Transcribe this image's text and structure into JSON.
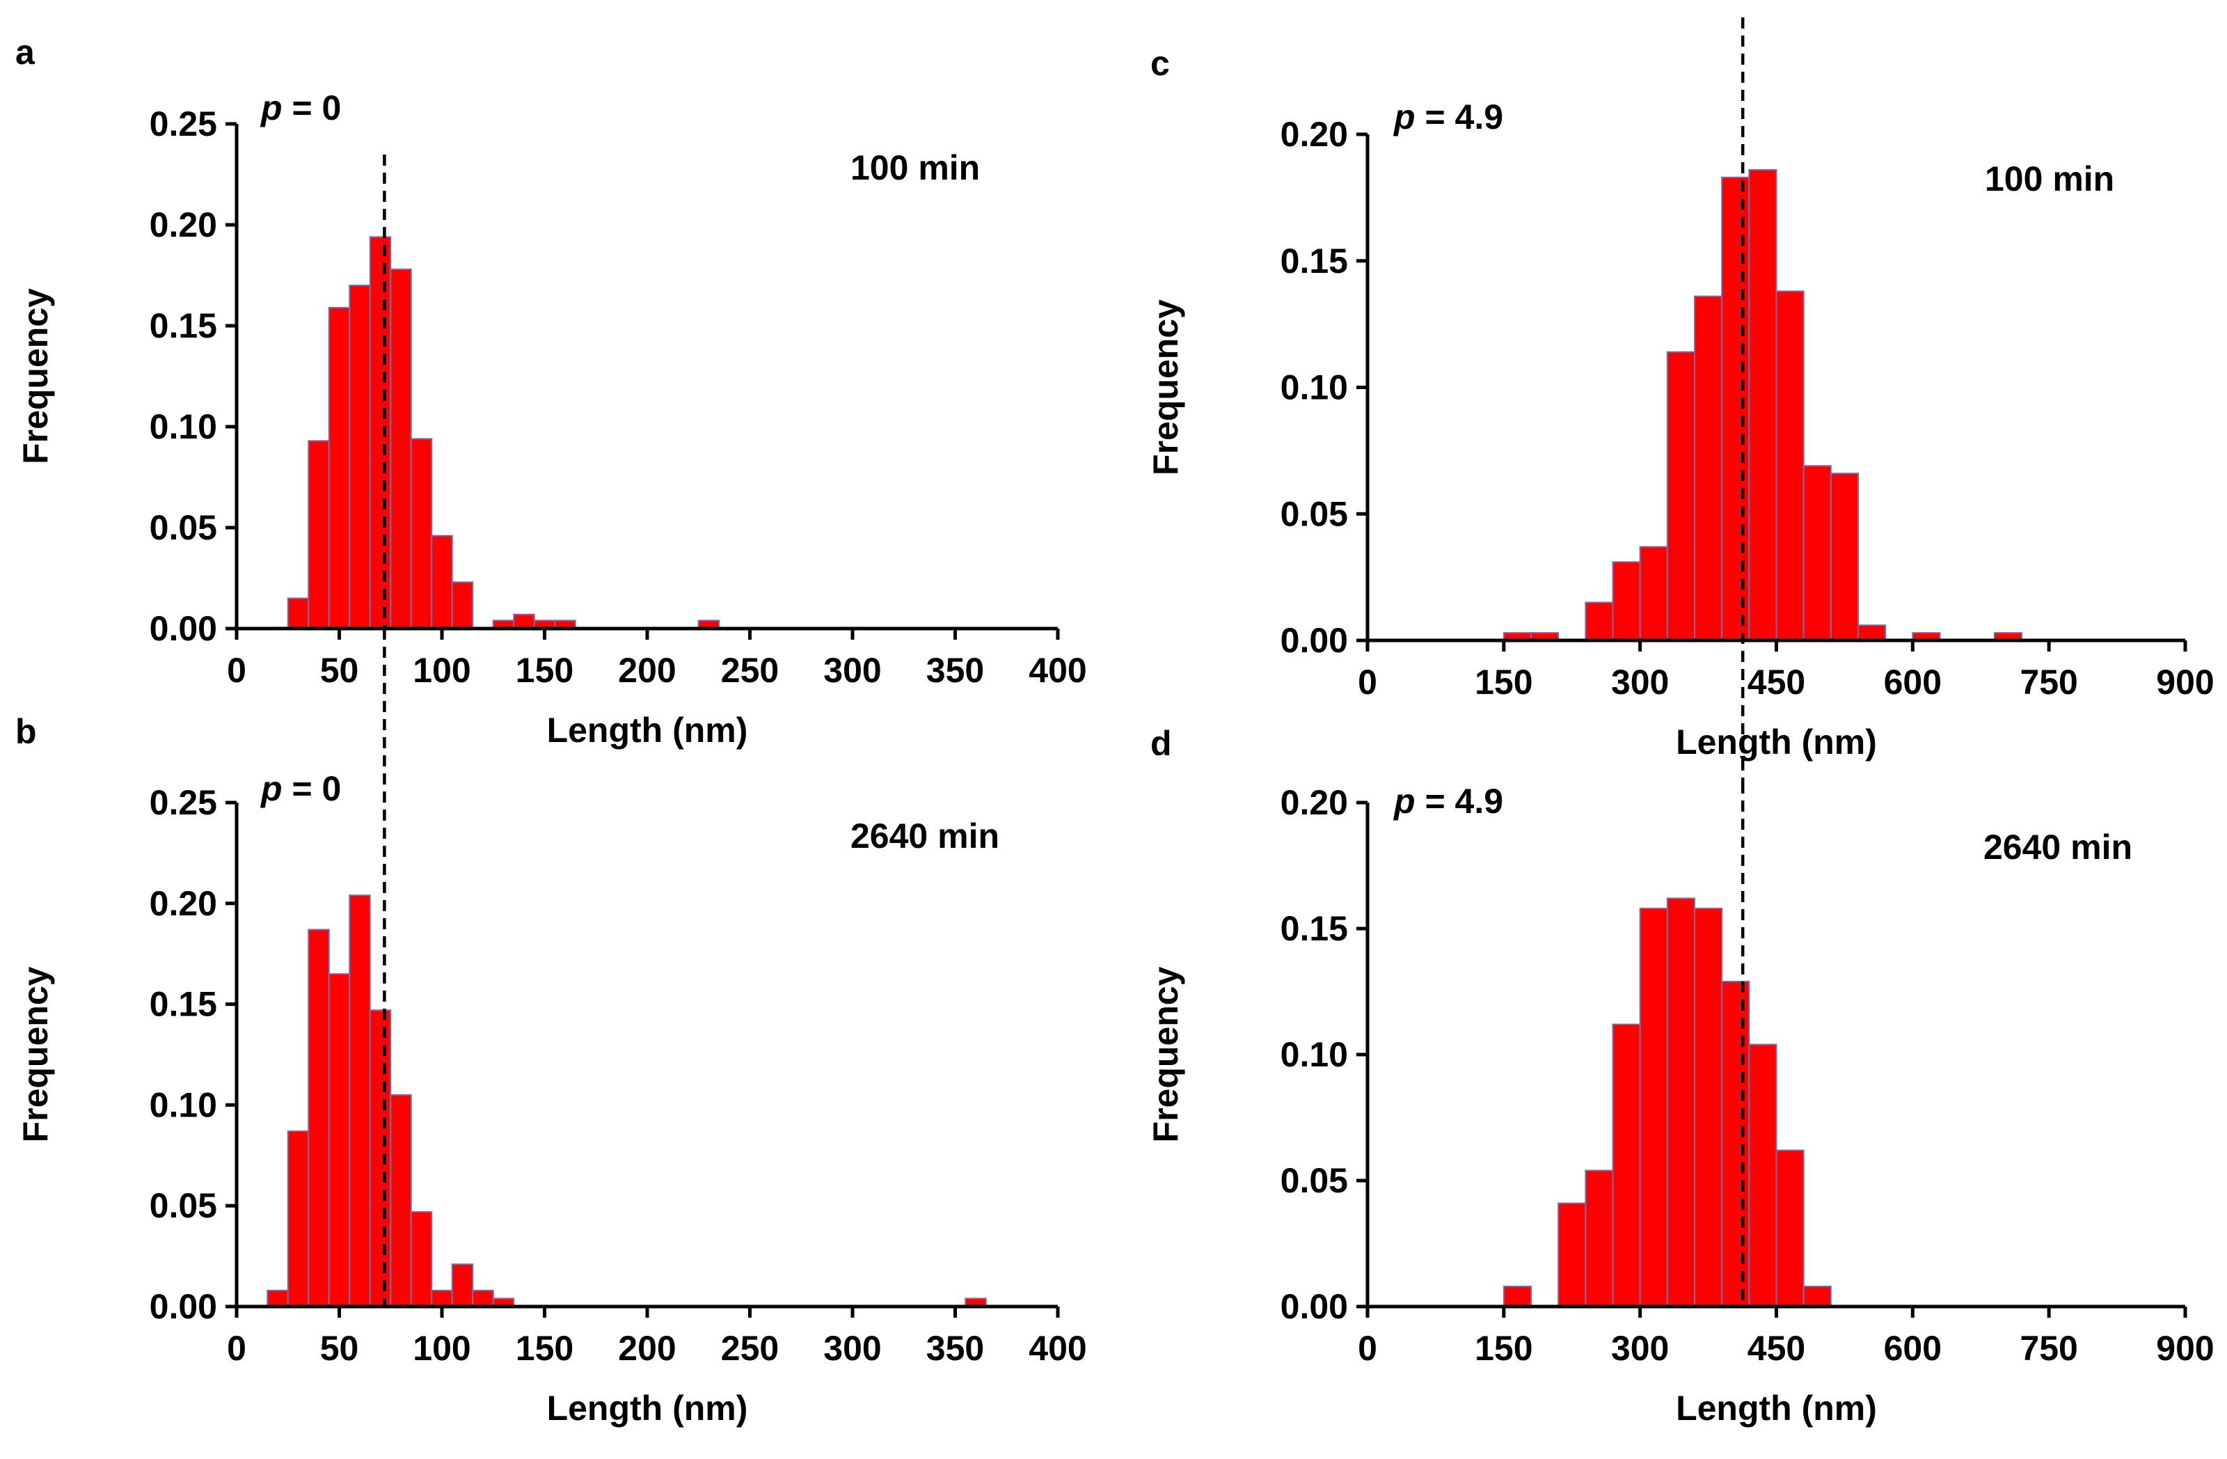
{
  "chart_data": [
    {
      "id": "a",
      "type": "bar",
      "panel_label": "a",
      "xlabel": "Length (nm)",
      "ylabel": "Frequency",
      "xlim": [
        0,
        400
      ],
      "ylim": [
        0,
        0.25
      ],
      "xticks": [
        0,
        50,
        100,
        150,
        200,
        250,
        300,
        350,
        400
      ],
      "xtick_labels": [
        "0",
        "50",
        "100",
        "150",
        "200",
        "250",
        "300",
        "350",
        "400"
      ],
      "yticks": [
        0,
        0.05,
        0.1,
        0.15,
        0.2,
        0.25
      ],
      "ytick_labels": [
        "0.00",
        "0.05",
        "0.10",
        "0.15",
        "0.20",
        "0.25"
      ],
      "p_label": "p",
      "p_value": " = 0",
      "time_label": "100 min",
      "ref_line_x": 72,
      "bin_width": 10,
      "bins": [
        {
          "x": 25,
          "y": 0.015
        },
        {
          "x": 35,
          "y": 0.093
        },
        {
          "x": 45,
          "y": 0.159
        },
        {
          "x": 55,
          "y": 0.17
        },
        {
          "x": 65,
          "y": 0.194
        },
        {
          "x": 75,
          "y": 0.178
        },
        {
          "x": 85,
          "y": 0.094
        },
        {
          "x": 95,
          "y": 0.046
        },
        {
          "x": 105,
          "y": 0.023
        },
        {
          "x": 125,
          "y": 0.004
        },
        {
          "x": 135,
          "y": 0.007
        },
        {
          "x": 145,
          "y": 0.004
        },
        {
          "x": 155,
          "y": 0.004
        },
        {
          "x": 225,
          "y": 0.004
        }
      ]
    },
    {
      "id": "b",
      "type": "bar",
      "panel_label": "b",
      "xlabel": "Length (nm)",
      "ylabel": "Frequency",
      "xlim": [
        0,
        400
      ],
      "ylim": [
        0,
        0.25
      ],
      "xticks": [
        0,
        50,
        100,
        150,
        200,
        250,
        300,
        350,
        400
      ],
      "xtick_labels": [
        "0",
        "50",
        "100",
        "150",
        "200",
        "250",
        "300",
        "350",
        "400"
      ],
      "yticks": [
        0,
        0.05,
        0.1,
        0.15,
        0.2,
        0.25
      ],
      "ytick_labels": [
        "0.00",
        "0.05",
        "0.10",
        "0.15",
        "0.20",
        "0.25"
      ],
      "p_label": "p",
      "p_value": " = 0",
      "time_label": "2640 min",
      "ref_line_x": 72,
      "bin_width": 10,
      "bins": [
        {
          "x": 15,
          "y": 0.008
        },
        {
          "x": 25,
          "y": 0.087
        },
        {
          "x": 35,
          "y": 0.187
        },
        {
          "x": 45,
          "y": 0.165
        },
        {
          "x": 55,
          "y": 0.204
        },
        {
          "x": 65,
          "y": 0.147
        },
        {
          "x": 75,
          "y": 0.105
        },
        {
          "x": 85,
          "y": 0.047
        },
        {
          "x": 95,
          "y": 0.008
        },
        {
          "x": 105,
          "y": 0.021
        },
        {
          "x": 115,
          "y": 0.008
        },
        {
          "x": 125,
          "y": 0.004
        },
        {
          "x": 355,
          "y": 0.004
        }
      ]
    },
    {
      "id": "c",
      "type": "bar",
      "panel_label": "c",
      "xlabel": "Length (nm)",
      "ylabel": "Frequency",
      "xlim": [
        0,
        900
      ],
      "ylim": [
        0,
        0.2
      ],
      "xticks": [
        0,
        150,
        300,
        450,
        600,
        750,
        900
      ],
      "xtick_labels": [
        "0",
        "150",
        "300",
        "450",
        "600",
        "750",
        "900"
      ],
      "yticks": [
        0,
        0.05,
        0.1,
        0.15,
        0.2
      ],
      "ytick_labels": [
        "0.00",
        "0.05",
        "0.10",
        "0.15",
        "0.20"
      ],
      "p_label": "p",
      "p_value": " = 4.9",
      "time_label": "100 min",
      "ref_line_x": 413,
      "bin_width": 30,
      "bins": [
        {
          "x": 150,
          "y": 0.003
        },
        {
          "x": 180,
          "y": 0.003
        },
        {
          "x": 240,
          "y": 0.015
        },
        {
          "x": 270,
          "y": 0.031
        },
        {
          "x": 300,
          "y": 0.037
        },
        {
          "x": 330,
          "y": 0.114
        },
        {
          "x": 360,
          "y": 0.136
        },
        {
          "x": 390,
          "y": 0.183
        },
        {
          "x": 420,
          "y": 0.186
        },
        {
          "x": 450,
          "y": 0.138
        },
        {
          "x": 480,
          "y": 0.069
        },
        {
          "x": 510,
          "y": 0.066
        },
        {
          "x": 540,
          "y": 0.006
        },
        {
          "x": 600,
          "y": 0.003
        },
        {
          "x": 690,
          "y": 0.003
        }
      ]
    },
    {
      "id": "d",
      "type": "bar",
      "panel_label": "d",
      "xlabel": "Length (nm)",
      "ylabel": "Frequency",
      "xlim": [
        0,
        900
      ],
      "ylim": [
        0,
        0.2
      ],
      "xticks": [
        0,
        150,
        300,
        450,
        600,
        750,
        900
      ],
      "xtick_labels": [
        "0",
        "150",
        "300",
        "450",
        "600",
        "750",
        "900"
      ],
      "yticks": [
        0,
        0.05,
        0.1,
        0.15,
        0.2
      ],
      "ytick_labels": [
        "0.00",
        "0.05",
        "0.10",
        "0.15",
        "0.20"
      ],
      "p_label": "p",
      "p_value": " = 4.9",
      "time_label": "2640 min",
      "ref_line_x": 413,
      "bin_width": 30,
      "bins": [
        {
          "x": 150,
          "y": 0.008
        },
        {
          "x": 210,
          "y": 0.041
        },
        {
          "x": 240,
          "y": 0.054
        },
        {
          "x": 270,
          "y": 0.112
        },
        {
          "x": 300,
          "y": 0.158
        },
        {
          "x": 330,
          "y": 0.162
        },
        {
          "x": 360,
          "y": 0.158
        },
        {
          "x": 390,
          "y": 0.129
        },
        {
          "x": 420,
          "y": 0.104
        },
        {
          "x": 450,
          "y": 0.062
        },
        {
          "x": 480,
          "y": 0.008
        }
      ]
    }
  ]
}
